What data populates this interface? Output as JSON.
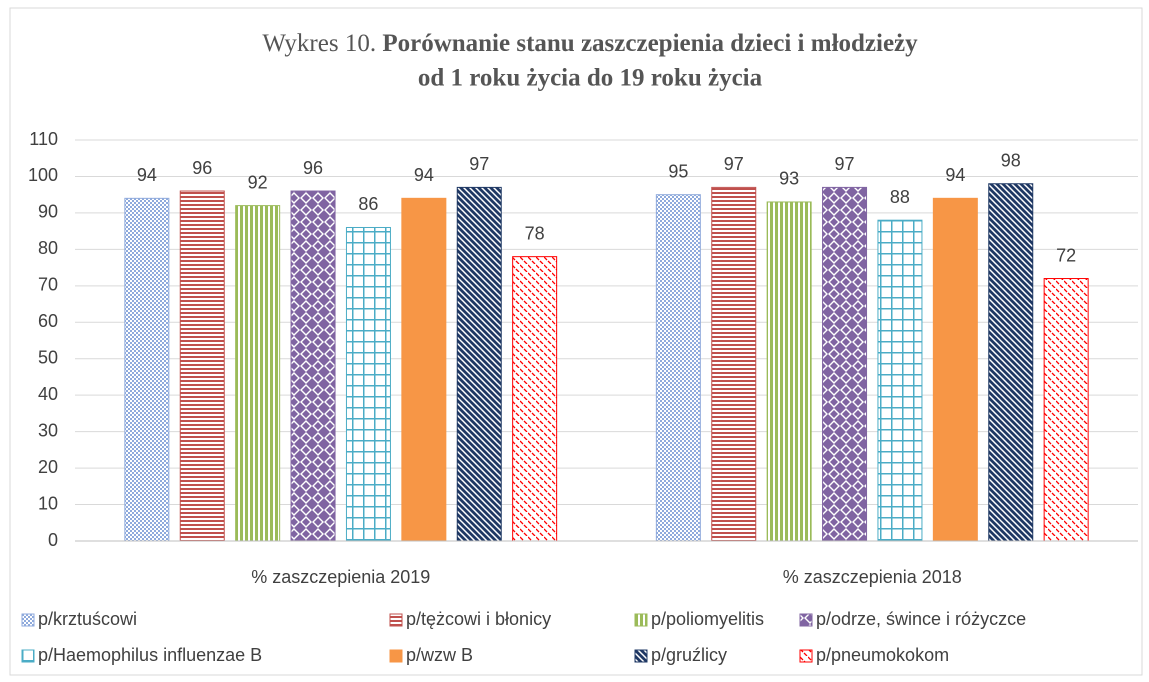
{
  "chart_data": {
    "type": "bar",
    "title_number": "Wykres 10.",
    "title": [
      "Porównanie stanu zaszczepienia dzieci i młodzieży",
      "od 1 roku życia do 19 roku życia"
    ],
    "categories": [
      "% zaszczepienia 2019",
      "% zaszczepienia 2018"
    ],
    "series": [
      {
        "name": "p/krztuścowi",
        "color": "#8faadc",
        "pattern": "dots",
        "values": [
          94,
          95
        ]
      },
      {
        "name": "p/tężcowi i błonicy",
        "color": "#c0504d",
        "pattern": "hstripes",
        "values": [
          96,
          97
        ]
      },
      {
        "name": "p/poliomyelitis",
        "color": "#9bbb59",
        "pattern": "vstripes",
        "values": [
          92,
          93
        ]
      },
      {
        "name": "p/odrze, śwince i różyczce",
        "color": "#8064a2",
        "pattern": "diamonds",
        "values": [
          96,
          97
        ]
      },
      {
        "name": "p/Haemophilus influenzae B",
        "color": "#4bacc6",
        "pattern": "grid",
        "values": [
          86,
          88
        ]
      },
      {
        "name": "p/wzw B",
        "color": "#f79646",
        "pattern": "solid",
        "values": [
          94,
          94
        ]
      },
      {
        "name": "p/gruźlicy",
        "color": "#1f3864",
        "pattern": "diagonal",
        "values": [
          97,
          98
        ]
      },
      {
        "name": "p/pneumokokom",
        "color": "#ff0000",
        "pattern": "zigzag",
        "values": [
          78,
          72
        ]
      }
    ],
    "ylim": [
      0,
      110
    ],
    "yticks": [
      0,
      10,
      20,
      30,
      40,
      50,
      60,
      70,
      80,
      90,
      100,
      110
    ],
    "grid": true,
    "legend": "bottom"
  }
}
